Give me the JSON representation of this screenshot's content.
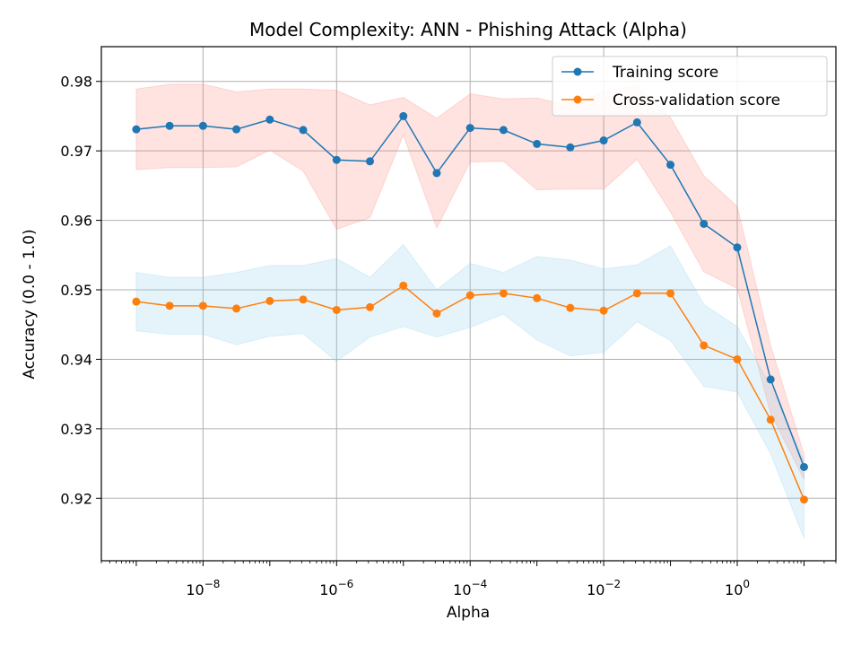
{
  "chart_data": {
    "type": "line",
    "title": "Model Complexity: ANN - Phishing Attack (Alpha)",
    "xlabel": "Alpha",
    "ylabel": "Accuracy (0.0 - 1.0)",
    "xscale": "log",
    "xlim": [
      3e-10,
      30
    ],
    "ylim": [
      0.911,
      0.985
    ],
    "x_ticks": [
      {
        "value": 1e-08,
        "base": "10",
        "exp": "−8"
      },
      {
        "value": 1e-06,
        "base": "10",
        "exp": "−6"
      },
      {
        "value": 0.0001,
        "base": "10",
        "exp": "−4"
      },
      {
        "value": 0.01,
        "base": "10",
        "exp": "−2"
      },
      {
        "value": 1,
        "base": "10",
        "exp": "0"
      }
    ],
    "y_ticks": [
      "0.92",
      "0.93",
      "0.94",
      "0.95",
      "0.96",
      "0.97",
      "0.98"
    ],
    "grid": true,
    "legend_position": "top-right",
    "x": [
      1e-09,
      3.16e-09,
      1e-08,
      3.16e-08,
      1e-07,
      3.16e-07,
      1e-06,
      3.16e-06,
      1e-05,
      3.16e-05,
      0.0001,
      0.000316,
      0.001,
      0.00316,
      0.01,
      0.0316,
      0.1,
      0.316,
      1,
      3.16,
      10
    ],
    "series": [
      {
        "name": "Training score",
        "color": "#1f77b4",
        "band_color": "#fa8072",
        "values": [
          0.9731,
          0.9736,
          0.9736,
          0.9731,
          0.9745,
          0.973,
          0.9687,
          0.9685,
          0.975,
          0.9668,
          0.9733,
          0.973,
          0.971,
          0.9705,
          0.9715,
          0.9741,
          0.968,
          0.9595,
          0.9561,
          0.9371,
          0.9245
        ],
        "upper": [
          0.9789,
          0.9796,
          0.9796,
          0.9785,
          0.9789,
          0.9789,
          0.9787,
          0.9766,
          0.9777,
          0.9747,
          0.9782,
          0.9775,
          0.9776,
          0.9765,
          0.9785,
          0.9794,
          0.9748,
          0.9664,
          0.962,
          0.942,
          0.9263
        ],
        "lower": [
          0.9673,
          0.9676,
          0.9676,
          0.9677,
          0.9701,
          0.9671,
          0.9587,
          0.9604,
          0.9723,
          0.9589,
          0.9684,
          0.9685,
          0.9644,
          0.9645,
          0.9645,
          0.9688,
          0.9612,
          0.9526,
          0.9502,
          0.9322,
          0.9227
        ]
      },
      {
        "name": "Cross-validation score",
        "color": "#ff7f0e",
        "band_color": "#87ceeb",
        "values": [
          0.9483,
          0.9477,
          0.9477,
          0.9473,
          0.9484,
          0.9486,
          0.9471,
          0.9475,
          0.9506,
          0.9466,
          0.9492,
          0.9495,
          0.9488,
          0.9474,
          0.947,
          0.9495,
          0.9495,
          0.942,
          0.94,
          0.9313,
          0.9198
        ],
        "upper": [
          0.9525,
          0.9518,
          0.9518,
          0.9525,
          0.9535,
          0.9535,
          0.9545,
          0.9518,
          0.9565,
          0.95,
          0.9538,
          0.9525,
          0.9548,
          0.9543,
          0.953,
          0.9536,
          0.9563,
          0.9479,
          0.9447,
          0.9362,
          0.9254
        ],
        "lower": [
          0.9441,
          0.9436,
          0.9436,
          0.9421,
          0.9433,
          0.9437,
          0.9397,
          0.9432,
          0.9447,
          0.9432,
          0.9446,
          0.9465,
          0.9428,
          0.9405,
          0.941,
          0.9454,
          0.9427,
          0.9361,
          0.9353,
          0.9264,
          0.9142
        ]
      }
    ]
  }
}
